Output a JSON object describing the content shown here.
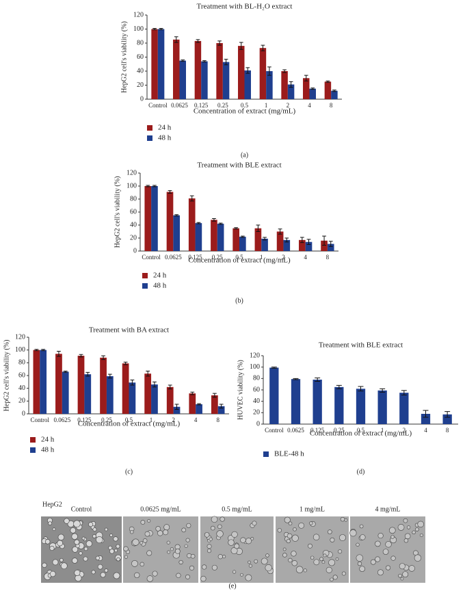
{
  "chart_data": [
    {
      "type": "bar",
      "title": "Treatment with BL-H₂O extract",
      "x_label": "Concentration of extract (mg/mL)",
      "y_label": "HepG2 cell's viability (%)",
      "categories": [
        "Control",
        "0.0625",
        "0.125",
        "0.25",
        "0.5",
        "1",
        "2",
        "4",
        "8"
      ],
      "series": [
        {
          "name": "24 h",
          "color": "#9b1c1c",
          "values": [
            100,
            85,
            83,
            80,
            76,
            73,
            40,
            30,
            25
          ],
          "errors": [
            1,
            4,
            2,
            3,
            5,
            4,
            2,
            4,
            1
          ]
        },
        {
          "name": "48 h",
          "color": "#1f3f8f",
          "values": [
            100,
            55,
            54,
            53,
            41,
            40,
            21,
            15,
            12
          ],
          "errors": [
            1,
            1,
            1,
            4,
            4,
            6,
            4,
            1,
            1
          ]
        }
      ],
      "ylim": [
        0,
        120
      ],
      "yticks": [
        0,
        20,
        40,
        60,
        80,
        100,
        120
      ],
      "grid": false,
      "legend": "bottom-left",
      "panel_label": "(a)"
    },
    {
      "type": "bar",
      "title": "Treatment with BLE extract",
      "x_label": "Concentration of extract (mg/mL)",
      "y_label": "HepG2 cell's viability (%)",
      "categories": [
        "Control",
        "0.0625",
        "0.125",
        "0.25",
        "0.5",
        "1",
        "2",
        "4",
        "8"
      ],
      "series": [
        {
          "name": "24 h",
          "color": "#9b1c1c",
          "values": [
            100,
            91,
            81,
            48,
            35,
            35,
            30,
            17,
            16
          ],
          "errors": [
            1,
            2,
            4,
            2,
            1,
            5,
            4,
            4,
            7
          ]
        },
        {
          "name": "48 h",
          "color": "#1f3f8f",
          "values": [
            100,
            55,
            43,
            42,
            22,
            19,
            17,
            14,
            11
          ],
          "errors": [
            1,
            1,
            1,
            1,
            1,
            2,
            3,
            4,
            4
          ]
        }
      ],
      "ylim": [
        0,
        120
      ],
      "yticks": [
        0,
        20,
        40,
        60,
        80,
        100,
        120
      ],
      "grid": false,
      "legend": "bottom-left",
      "panel_label": "(b)"
    },
    {
      "type": "bar",
      "title": "Treatment with BA extract",
      "x_label": "Concentration of extract (mg/mL)",
      "y_label": "HepG2 cell's viability (%)",
      "categories": [
        "Control",
        "0.0625",
        "0.125",
        "0.25",
        "0.5",
        "1",
        "2",
        "4",
        "8"
      ],
      "series": [
        {
          "name": "24 h",
          "color": "#9b1c1c",
          "values": [
            100,
            94,
            91,
            88,
            79,
            63,
            42,
            32,
            29
          ],
          "errors": [
            1,
            4,
            2,
            3,
            2,
            4,
            3,
            2,
            3
          ]
        },
        {
          "name": "48 h",
          "color": "#1f3f8f",
          "values": [
            100,
            66,
            62,
            59,
            49,
            46,
            11,
            15,
            12
          ],
          "errors": [
            1,
            1,
            3,
            3,
            4,
            4,
            4,
            1,
            3
          ]
        }
      ],
      "ylim": [
        0,
        120
      ],
      "yticks": [
        0,
        20,
        40,
        60,
        80,
        100,
        120
      ],
      "grid": false,
      "legend": "bottom-left",
      "panel_label": "(c)"
    },
    {
      "type": "bar",
      "title": "Treatment with BLE extract",
      "x_label": "Concentration of extract (mg/mL)",
      "y_label": "HUVEC viability (%)",
      "categories": [
        "Control",
        "0.0625",
        "0.125",
        "0.25",
        "0.5",
        "1",
        "2",
        "4",
        "8"
      ],
      "series": [
        {
          "name": "BLE-48 h",
          "color": "#1f3f8f",
          "values": [
            99,
            79,
            78,
            65,
            62,
            59,
            55,
            18,
            17
          ],
          "errors": [
            1,
            1,
            3,
            3,
            4,
            3,
            4,
            6,
            5
          ]
        }
      ],
      "ylim": [
        0,
        120
      ],
      "yticks": [
        0,
        20,
        40,
        60,
        80,
        100,
        120
      ],
      "grid": false,
      "legend": "bottom-left",
      "panel_label": "(d)"
    }
  ],
  "micrographs": {
    "cell_line": "HepG2",
    "panels": [
      "Control",
      "0.0625 mg/mL",
      "0.5 mg/mL",
      "1 mg/mL",
      "4 mg/mL"
    ],
    "panel_label": "(e)"
  }
}
